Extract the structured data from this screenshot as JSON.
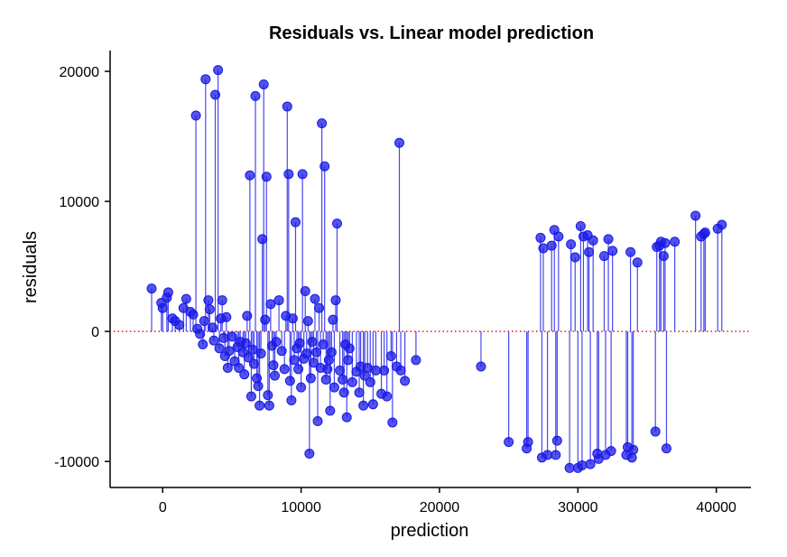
{
  "chart_data": {
    "type": "scatter",
    "title": "Residuals vs. Linear model prediction",
    "xlabel": "prediction",
    "ylabel": "residuals",
    "xlim": [
      -3800,
      42500
    ],
    "ylim": [
      -12000,
      21600
    ],
    "xticks": [
      0,
      10000,
      20000,
      30000,
      40000
    ],
    "yticks": [
      -10000,
      0,
      10000,
      20000
    ],
    "xtick_labels": [
      "0",
      "10000",
      "20000",
      "30000",
      "40000"
    ],
    "ytick_labels": [
      "-10000",
      "0",
      "10000",
      "20000"
    ],
    "grid": false,
    "legend": "none",
    "reference_line": {
      "y": 0,
      "style": "dotted",
      "color": "#e41a1c"
    },
    "stems": true,
    "point_color": "#1a1ae6",
    "stem_color": "#3333ee",
    "points": [
      [
        -800,
        3300
      ],
      [
        -100,
        2200
      ],
      [
        0,
        1800
      ],
      [
        300,
        2600
      ],
      [
        400,
        3000
      ],
      [
        700,
        1000
      ],
      [
        900,
        800
      ],
      [
        1200,
        500
      ],
      [
        1500,
        1800
      ],
      [
        1700,
        2500
      ],
      [
        2000,
        1500
      ],
      [
        2200,
        1300
      ],
      [
        2400,
        16600
      ],
      [
        2500,
        200
      ],
      [
        2700,
        -200
      ],
      [
        2900,
        -1000
      ],
      [
        3000,
        800
      ],
      [
        3100,
        19400
      ],
      [
        3300,
        2400
      ],
      [
        3400,
        1700
      ],
      [
        3600,
        300
      ],
      [
        3700,
        -700
      ],
      [
        3800,
        18200
      ],
      [
        4000,
        20100
      ],
      [
        4100,
        -1300
      ],
      [
        4200,
        1000
      ],
      [
        4300,
        2400
      ],
      [
        4400,
        -500
      ],
      [
        4500,
        -1900
      ],
      [
        4600,
        1100
      ],
      [
        4700,
        -2800
      ],
      [
        4800,
        -1500
      ],
      [
        5000,
        -400
      ],
      [
        5200,
        -2300
      ],
      [
        5400,
        -1200
      ],
      [
        5500,
        -2800
      ],
      [
        5600,
        -800
      ],
      [
        5800,
        -1600
      ],
      [
        5900,
        -3300
      ],
      [
        6000,
        -900
      ],
      [
        6100,
        1200
      ],
      [
        6200,
        -2000
      ],
      [
        6300,
        12000
      ],
      [
        6400,
        -5000
      ],
      [
        6500,
        -1400
      ],
      [
        6600,
        -2500
      ],
      [
        6700,
        18100
      ],
      [
        6800,
        -3600
      ],
      [
        6900,
        -4200
      ],
      [
        7000,
        -5700
      ],
      [
        7100,
        -1700
      ],
      [
        7200,
        7100
      ],
      [
        7300,
        19000
      ],
      [
        7400,
        900
      ],
      [
        7500,
        11900
      ],
      [
        7600,
        -4900
      ],
      [
        7700,
        -5700
      ],
      [
        7800,
        2100
      ],
      [
        7900,
        -1100
      ],
      [
        8000,
        -2600
      ],
      [
        8100,
        -3400
      ],
      [
        8200,
        -800
      ],
      [
        8400,
        2400
      ],
      [
        8600,
        -1500
      ],
      [
        8800,
        -2900
      ],
      [
        8900,
        1200
      ],
      [
        9000,
        17300
      ],
      [
        9100,
        12100
      ],
      [
        9200,
        -3800
      ],
      [
        9300,
        -5300
      ],
      [
        9400,
        1000
      ],
      [
        9500,
        -2200
      ],
      [
        9600,
        8400
      ],
      [
        9700,
        -1300
      ],
      [
        9800,
        -2900
      ],
      [
        9900,
        -900
      ],
      [
        10000,
        -4300
      ],
      [
        10100,
        12100
      ],
      [
        10200,
        -2100
      ],
      [
        10300,
        3100
      ],
      [
        10400,
        -1700
      ],
      [
        10500,
        800
      ],
      [
        10600,
        -9400
      ],
      [
        10700,
        -3600
      ],
      [
        10800,
        -800
      ],
      [
        10900,
        -2400
      ],
      [
        11000,
        2500
      ],
      [
        11100,
        -1600
      ],
      [
        11200,
        -6900
      ],
      [
        11300,
        1800
      ],
      [
        11400,
        -2800
      ],
      [
        11500,
        16000
      ],
      [
        11600,
        -1000
      ],
      [
        11700,
        12700
      ],
      [
        11800,
        -3700
      ],
      [
        11900,
        -2900
      ],
      [
        12000,
        -2200
      ],
      [
        12100,
        -6100
      ],
      [
        12200,
        -1600
      ],
      [
        12300,
        900
      ],
      [
        12400,
        -4300
      ],
      [
        12500,
        2400
      ],
      [
        12600,
        8300
      ],
      [
        12800,
        -3000
      ],
      [
        13000,
        -3700
      ],
      [
        13100,
        -4700
      ],
      [
        13200,
        -1000
      ],
      [
        13300,
        -6600
      ],
      [
        13400,
        -2200
      ],
      [
        13500,
        -1300
      ],
      [
        13700,
        -3900
      ],
      [
        14000,
        -3100
      ],
      [
        14200,
        -4700
      ],
      [
        14300,
        -2700
      ],
      [
        14500,
        -5700
      ],
      [
        14600,
        -3400
      ],
      [
        14800,
        -2800
      ],
      [
        15000,
        -3900
      ],
      [
        15200,
        -5600
      ],
      [
        15400,
        -3000
      ],
      [
        15800,
        -4800
      ],
      [
        16000,
        -3000
      ],
      [
        16200,
        -5000
      ],
      [
        16500,
        -1900
      ],
      [
        16600,
        -7000
      ],
      [
        16900,
        -2700
      ],
      [
        17100,
        14500
      ],
      [
        17200,
        -3000
      ],
      [
        17500,
        -3800
      ],
      [
        18300,
        -2200
      ],
      [
        23000,
        -2700
      ],
      [
        25000,
        -8500
      ],
      [
        26300,
        -9000
      ],
      [
        26400,
        -8500
      ],
      [
        27300,
        7200
      ],
      [
        27400,
        -9700
      ],
      [
        27500,
        6400
      ],
      [
        27800,
        -9500
      ],
      [
        28100,
        6600
      ],
      [
        28300,
        7800
      ],
      [
        28400,
        -9500
      ],
      [
        28500,
        -8400
      ],
      [
        28600,
        7300
      ],
      [
        29400,
        -10500
      ],
      [
        29500,
        6700
      ],
      [
        29800,
        5700
      ],
      [
        30000,
        -10500
      ],
      [
        30200,
        8100
      ],
      [
        30300,
        -10300
      ],
      [
        30400,
        7300
      ],
      [
        30700,
        7400
      ],
      [
        30800,
        6100
      ],
      [
        30900,
        -10200
      ],
      [
        31100,
        7000
      ],
      [
        31400,
        -9400
      ],
      [
        31500,
        -9800
      ],
      [
        31900,
        5800
      ],
      [
        32000,
        -9500
      ],
      [
        32200,
        7100
      ],
      [
        32400,
        -9200
      ],
      [
        32500,
        6200
      ],
      [
        33500,
        -9500
      ],
      [
        33600,
        -8900
      ],
      [
        33800,
        6100
      ],
      [
        33900,
        -9700
      ],
      [
        34000,
        -9100
      ],
      [
        34300,
        5300
      ],
      [
        35600,
        -7700
      ],
      [
        35700,
        6500
      ],
      [
        35900,
        6600
      ],
      [
        36000,
        6900
      ],
      [
        36200,
        5800
      ],
      [
        36300,
        6800
      ],
      [
        36400,
        -9000
      ],
      [
        37000,
        6900
      ],
      [
        38500,
        8900
      ],
      [
        38900,
        7300
      ],
      [
        39100,
        7500
      ],
      [
        39200,
        7600
      ],
      [
        40100,
        7900
      ],
      [
        40400,
        8200
      ]
    ]
  }
}
